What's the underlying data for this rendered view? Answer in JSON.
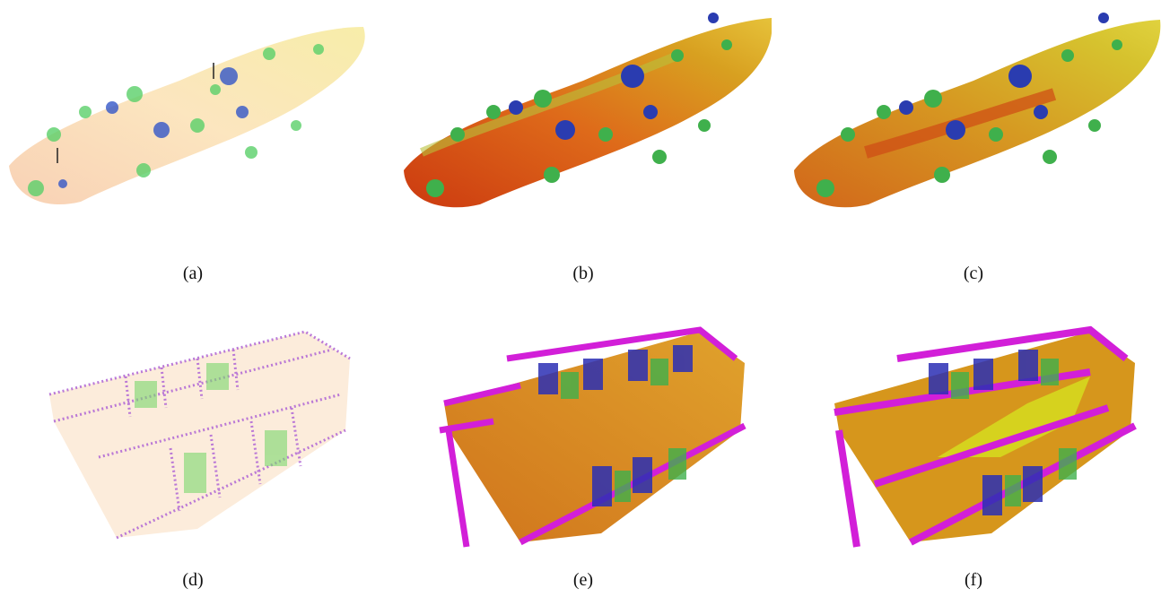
{
  "figure": {
    "panels": [
      {
        "id": "a",
        "caption": "(a)",
        "content": "sparse point cloud of curved terrain strip with trees"
      },
      {
        "id": "b",
        "caption": "(b)",
        "content": "dense voxel map of curved terrain strip with trees"
      },
      {
        "id": "c",
        "caption": "(c)",
        "content": "smooth voxel map of curved terrain strip with trees"
      },
      {
        "id": "d",
        "caption": "(d)",
        "content": "sparse point cloud of indoor multi-room floor"
      },
      {
        "id": "e",
        "caption": "(e)",
        "content": "dense voxel map of indoor multi-room floor"
      },
      {
        "id": "f",
        "caption": "(f)",
        "content": "smooth voxel map of indoor multi-room floor"
      }
    ]
  }
}
